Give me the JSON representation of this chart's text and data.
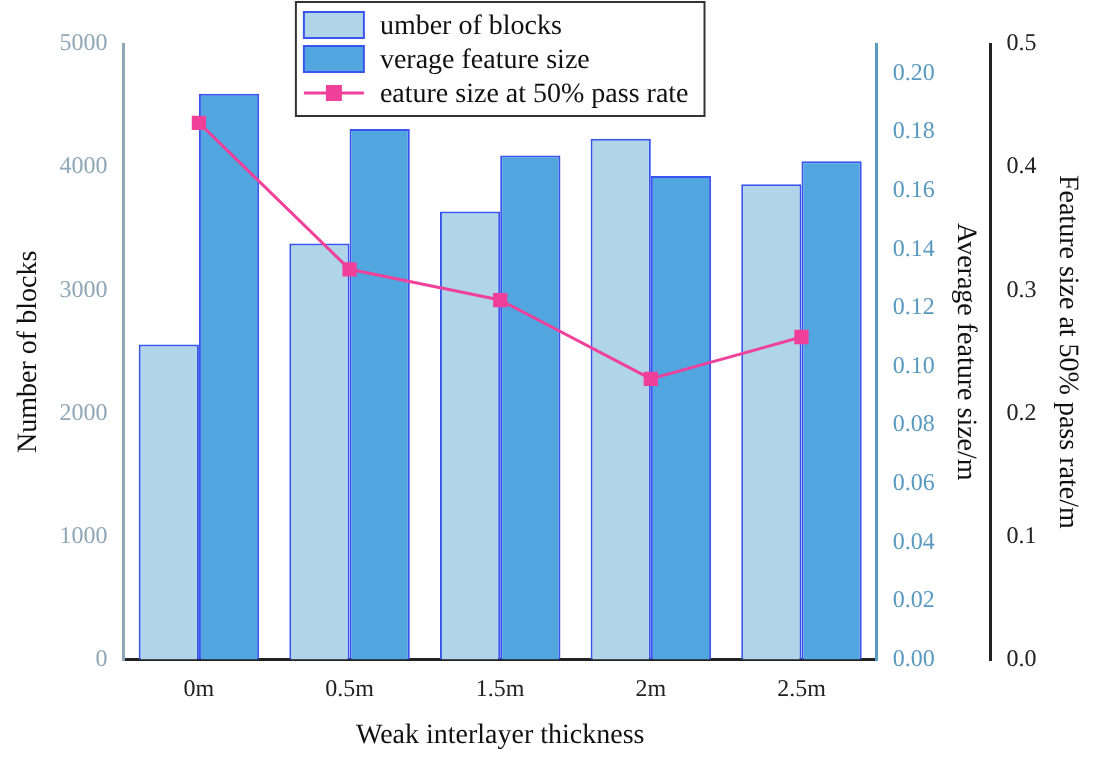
{
  "chart_data": {
    "type": "bar",
    "xlabel": "Weak interlayer thickness",
    "ylabel": "Number of blocks",
    "y2label": "Average feature size/m",
    "y3label": "Feature size at 50% pass rate/m",
    "categories": [
      "0m",
      "0.5m",
      "1.5m",
      "2m",
      "2.5m"
    ],
    "series": [
      {
        "name": "umber of blocks",
        "color": "#b0d4e8",
        "values": [
          2560,
          3380,
          3640,
          4230,
          3860
        ]
      },
      {
        "name": "verage feature size",
        "axis": "y2",
        "color": "#52a6e0",
        "values": [
          0.193,
          0.181,
          0.172,
          0.165,
          0.17
        ]
      },
      {
        "name": "eature size at 50% pass rate",
        "type": "line",
        "axis": "y3",
        "color": "#f0409a",
        "marker": "square",
        "values": [
          0.436,
          0.317,
          0.292,
          0.228,
          0.262
        ]
      }
    ],
    "ylim": [
      0,
      5000
    ],
    "yticks": [
      0,
      1000,
      2000,
      3000,
      4000,
      5000
    ],
    "y2lim": [
      0,
      0.21
    ],
    "y2ticks": [
      {
        "value": 0,
        "label": "0.00"
      },
      {
        "value": 0.02,
        "label": "0.02"
      },
      {
        "value": 0.04,
        "label": "0.04"
      },
      {
        "value": 0.06,
        "label": "0.06"
      },
      {
        "value": 0.08,
        "label": "0.08"
      },
      {
        "value": 0.1,
        "label": "0.10"
      },
      {
        "value": 0.12,
        "label": "0.12"
      },
      {
        "value": 0.14,
        "label": "0.14"
      },
      {
        "value": 0.16,
        "label": "0.16"
      },
      {
        "value": 0.18,
        "label": "0.18"
      },
      {
        "value": 0.2,
        "label": "0.20"
      }
    ],
    "y3lim": [
      0,
      0.5
    ],
    "y3ticks": [
      {
        "value": 0,
        "label": "0.0"
      },
      {
        "value": 0.1,
        "label": "0.1"
      },
      {
        "value": 0.2,
        "label": "0.2"
      },
      {
        "value": 0.3,
        "label": "0.3"
      },
      {
        "value": 0.4,
        "label": "0.4"
      },
      {
        "value": 0.5,
        "label": "0.5"
      }
    ],
    "grid": false,
    "legend": "top"
  }
}
